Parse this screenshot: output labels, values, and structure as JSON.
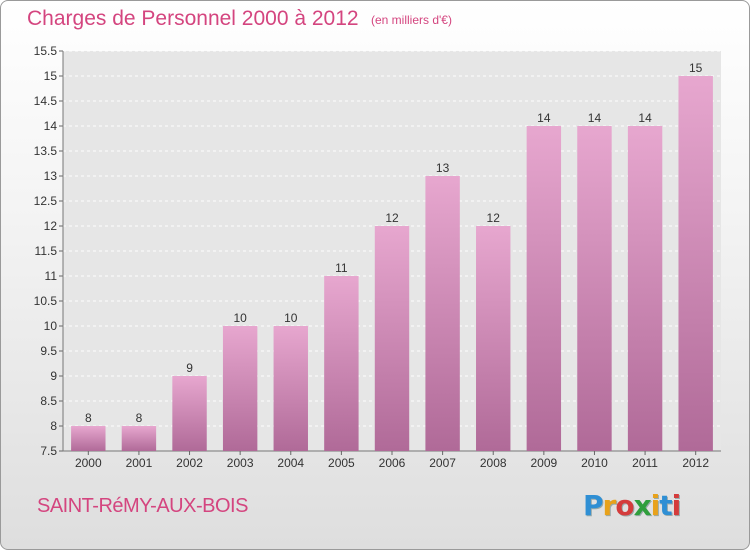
{
  "title": "Charges de Personnel 2000 à 2012",
  "subtitle": "(en milliers d'€)",
  "commune": "SAINT-RéMY-AUX-BOIS",
  "logo": {
    "letters": [
      "P",
      "r",
      "o",
      "x",
      "i",
      "t",
      "i"
    ],
    "colors": [
      "#2f8fd4",
      "#e8a21b",
      "#d43c3c",
      "#2f9e3c",
      "#e8a21b",
      "#2f8fd4",
      "#d43c3c"
    ]
  },
  "colors": {
    "bar_top": "#e7a7cf",
    "bar_bottom": "#b06a98",
    "text": "#d4457f"
  },
  "chart_data": {
    "type": "bar",
    "categories": [
      "2000",
      "2001",
      "2002",
      "2003",
      "2004",
      "2005",
      "2006",
      "2007",
      "2008",
      "2009",
      "2010",
      "2011",
      "2012"
    ],
    "values": [
      8,
      8,
      9,
      10,
      10,
      11,
      12,
      13,
      12,
      14,
      14,
      14,
      15
    ],
    "ylim": [
      7.5,
      15.5
    ],
    "yticks": [
      "7.5",
      "8",
      "8.5",
      "9",
      "9.5",
      "10",
      "10.5",
      "11",
      "11.5",
      "12",
      "12.5",
      "13",
      "13.5",
      "14",
      "14.5",
      "15",
      "15.5"
    ],
    "grid": true
  }
}
